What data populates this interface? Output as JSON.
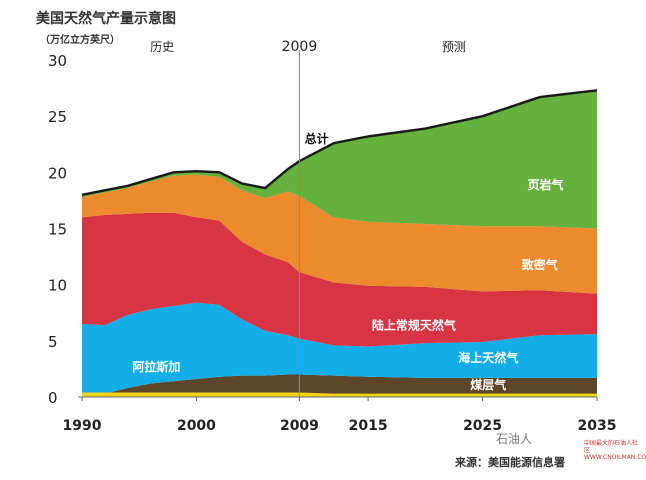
{
  "title": "美国天然气产量示意图",
  "unit": "（万亿立方英尺）",
  "source": "来源：美国能源信息署",
  "watermark": {
    "logo": "石油人",
    "text": "中国最大的石油人社区 WWW.CNOILMAN.COM"
  },
  "chart_data": {
    "type": "area",
    "stacked": true,
    "x": [
      1990,
      1992,
      1994,
      1996,
      1998,
      2000,
      2002,
      2004,
      2006,
      2008,
      2009,
      2012,
      2015,
      2020,
      2025,
      2030,
      2035
    ],
    "ylim": [
      0,
      30
    ],
    "xlim": [
      1990,
      2035
    ],
    "yticks": [
      0,
      5,
      10,
      15,
      20,
      25,
      30
    ],
    "xticks": [
      1990,
      2000,
      2009,
      2015,
      2025,
      2035
    ],
    "grid": false,
    "period_labels": {
      "history": "历史",
      "forecast": "预测",
      "divider": "2009",
      "divider_x": 2009
    },
    "series": [
      {
        "name": "煤层气",
        "color": "#5c4528",
        "values": [
          0.2,
          0.3,
          0.8,
          1.2,
          1.4,
          1.6,
          1.8,
          1.9,
          1.9,
          2.0,
          2.0,
          1.9,
          1.8,
          1.7,
          1.7,
          1.7,
          1.7
        ]
      },
      {
        "name": "海上天然气",
        "color": "#12aee8",
        "values": [
          6.3,
          6.1,
          6.5,
          6.6,
          6.7,
          6.8,
          6.4,
          5.0,
          4.0,
          3.5,
          3.2,
          2.7,
          2.7,
          3.1,
          3.2,
          3.8,
          3.9
        ]
      },
      {
        "name": "陆上常规天然气",
        "color": "#d83544",
        "values": [
          9.5,
          9.8,
          9.0,
          8.6,
          8.3,
          7.6,
          7.5,
          6.9,
          6.8,
          6.5,
          5.9,
          5.6,
          5.4,
          5.0,
          4.5,
          4.0,
          3.6
        ]
      },
      {
        "name": "致密气",
        "color": "#ec8a2d",
        "values": [
          1.8,
          2.0,
          2.3,
          2.8,
          3.3,
          3.8,
          3.9,
          4.6,
          5.0,
          6.3,
          6.8,
          5.8,
          5.7,
          5.6,
          5.8,
          5.7,
          5.8
        ]
      },
      {
        "name": "页岩气",
        "color": "#66b03d",
        "values": [
          0.2,
          0.2,
          0.2,
          0.2,
          0.3,
          0.3,
          0.4,
          0.6,
          0.9,
          2.0,
          3.1,
          6.6,
          7.6,
          8.5,
          9.8,
          11.5,
          12.3
        ]
      }
    ],
    "total": {
      "name": "总计",
      "values": [
        18.0,
        18.4,
        18.8,
        19.4,
        20.0,
        20.1,
        20.0,
        19.0,
        18.6,
        20.3,
        21.0,
        22.6,
        23.2,
        23.9,
        25.0,
        26.7,
        27.3
      ]
    },
    "series_labels": [
      {
        "name": "页岩气",
        "x": 2030.5,
        "y": 18.5
      },
      {
        "name": "致密气",
        "x": 2030,
        "y": 11.4
      },
      {
        "name": "陆上常规天然气",
        "x": 2019,
        "y": 6.0
      },
      {
        "name": "海上天然气",
        "x": 2025.5,
        "y": 3.1
      },
      {
        "name": "煤层气",
        "x": 2025.5,
        "y": 0.7
      },
      {
        "name": "阿拉斯加",
        "x": 1996.5,
        "y": 2.3
      },
      {
        "name": "总计",
        "x": 2010.5,
        "y": 22.6
      }
    ],
    "alaska": {
      "name": "阿拉斯加",
      "color": "#f2d21a",
      "values": [
        0.4,
        0.4,
        0.4,
        0.4,
        0.4,
        0.4,
        0.4,
        0.4,
        0.4,
        0.4,
        0.4,
        0.3,
        0.3,
        0.3,
        0.3,
        0.3,
        0.3
      ]
    }
  }
}
